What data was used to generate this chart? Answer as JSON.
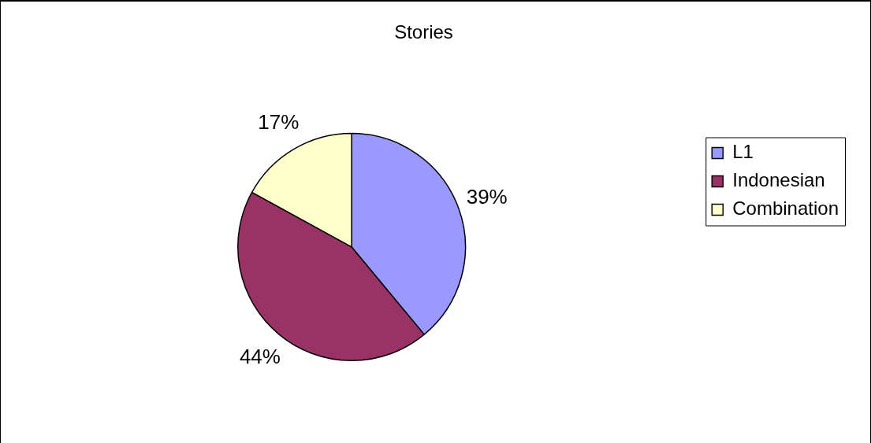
{
  "chart_data": {
    "type": "pie",
    "title": "Stories",
    "categories": [
      "L1",
      "Indonesian",
      "Combination"
    ],
    "values": [
      39,
      44,
      17
    ],
    "colors": [
      "#9999ff",
      "#993366",
      "#ffffcc"
    ],
    "value_labels": [
      "39%",
      "44%",
      "17%"
    ],
    "legend": "right"
  }
}
